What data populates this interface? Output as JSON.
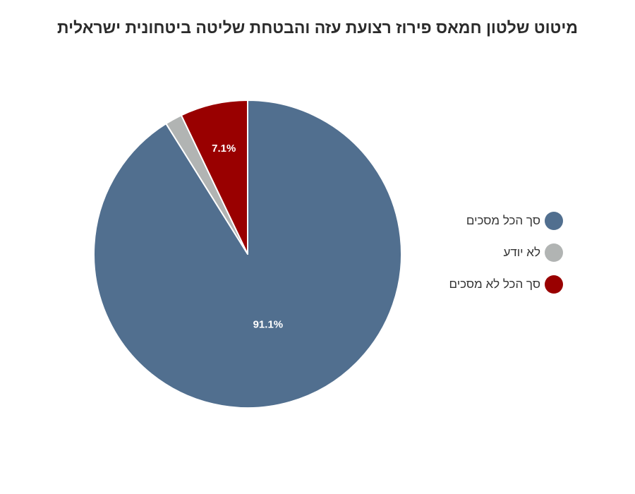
{
  "chart_data": {
    "type": "pie",
    "title": "מיטוט שלטון חמאס פירוז רצועת עזה והבטחת שליטה ביטחונית ישראלית",
    "slices": [
      {
        "label": "סך הכל מסכים",
        "value": 91.1,
        "color": "#516f8f",
        "data_label": "91.1%"
      },
      {
        "label": "לא יודע",
        "value": 1.8,
        "color": "#b1b4b3",
        "data_label": ""
      },
      {
        "label": "סך הכל לא מסכים",
        "value": 7.1,
        "color": "#990000",
        "data_label": "7.1%"
      }
    ],
    "legend_position": "right",
    "start_angle": "12 o'clock, clockwise"
  }
}
